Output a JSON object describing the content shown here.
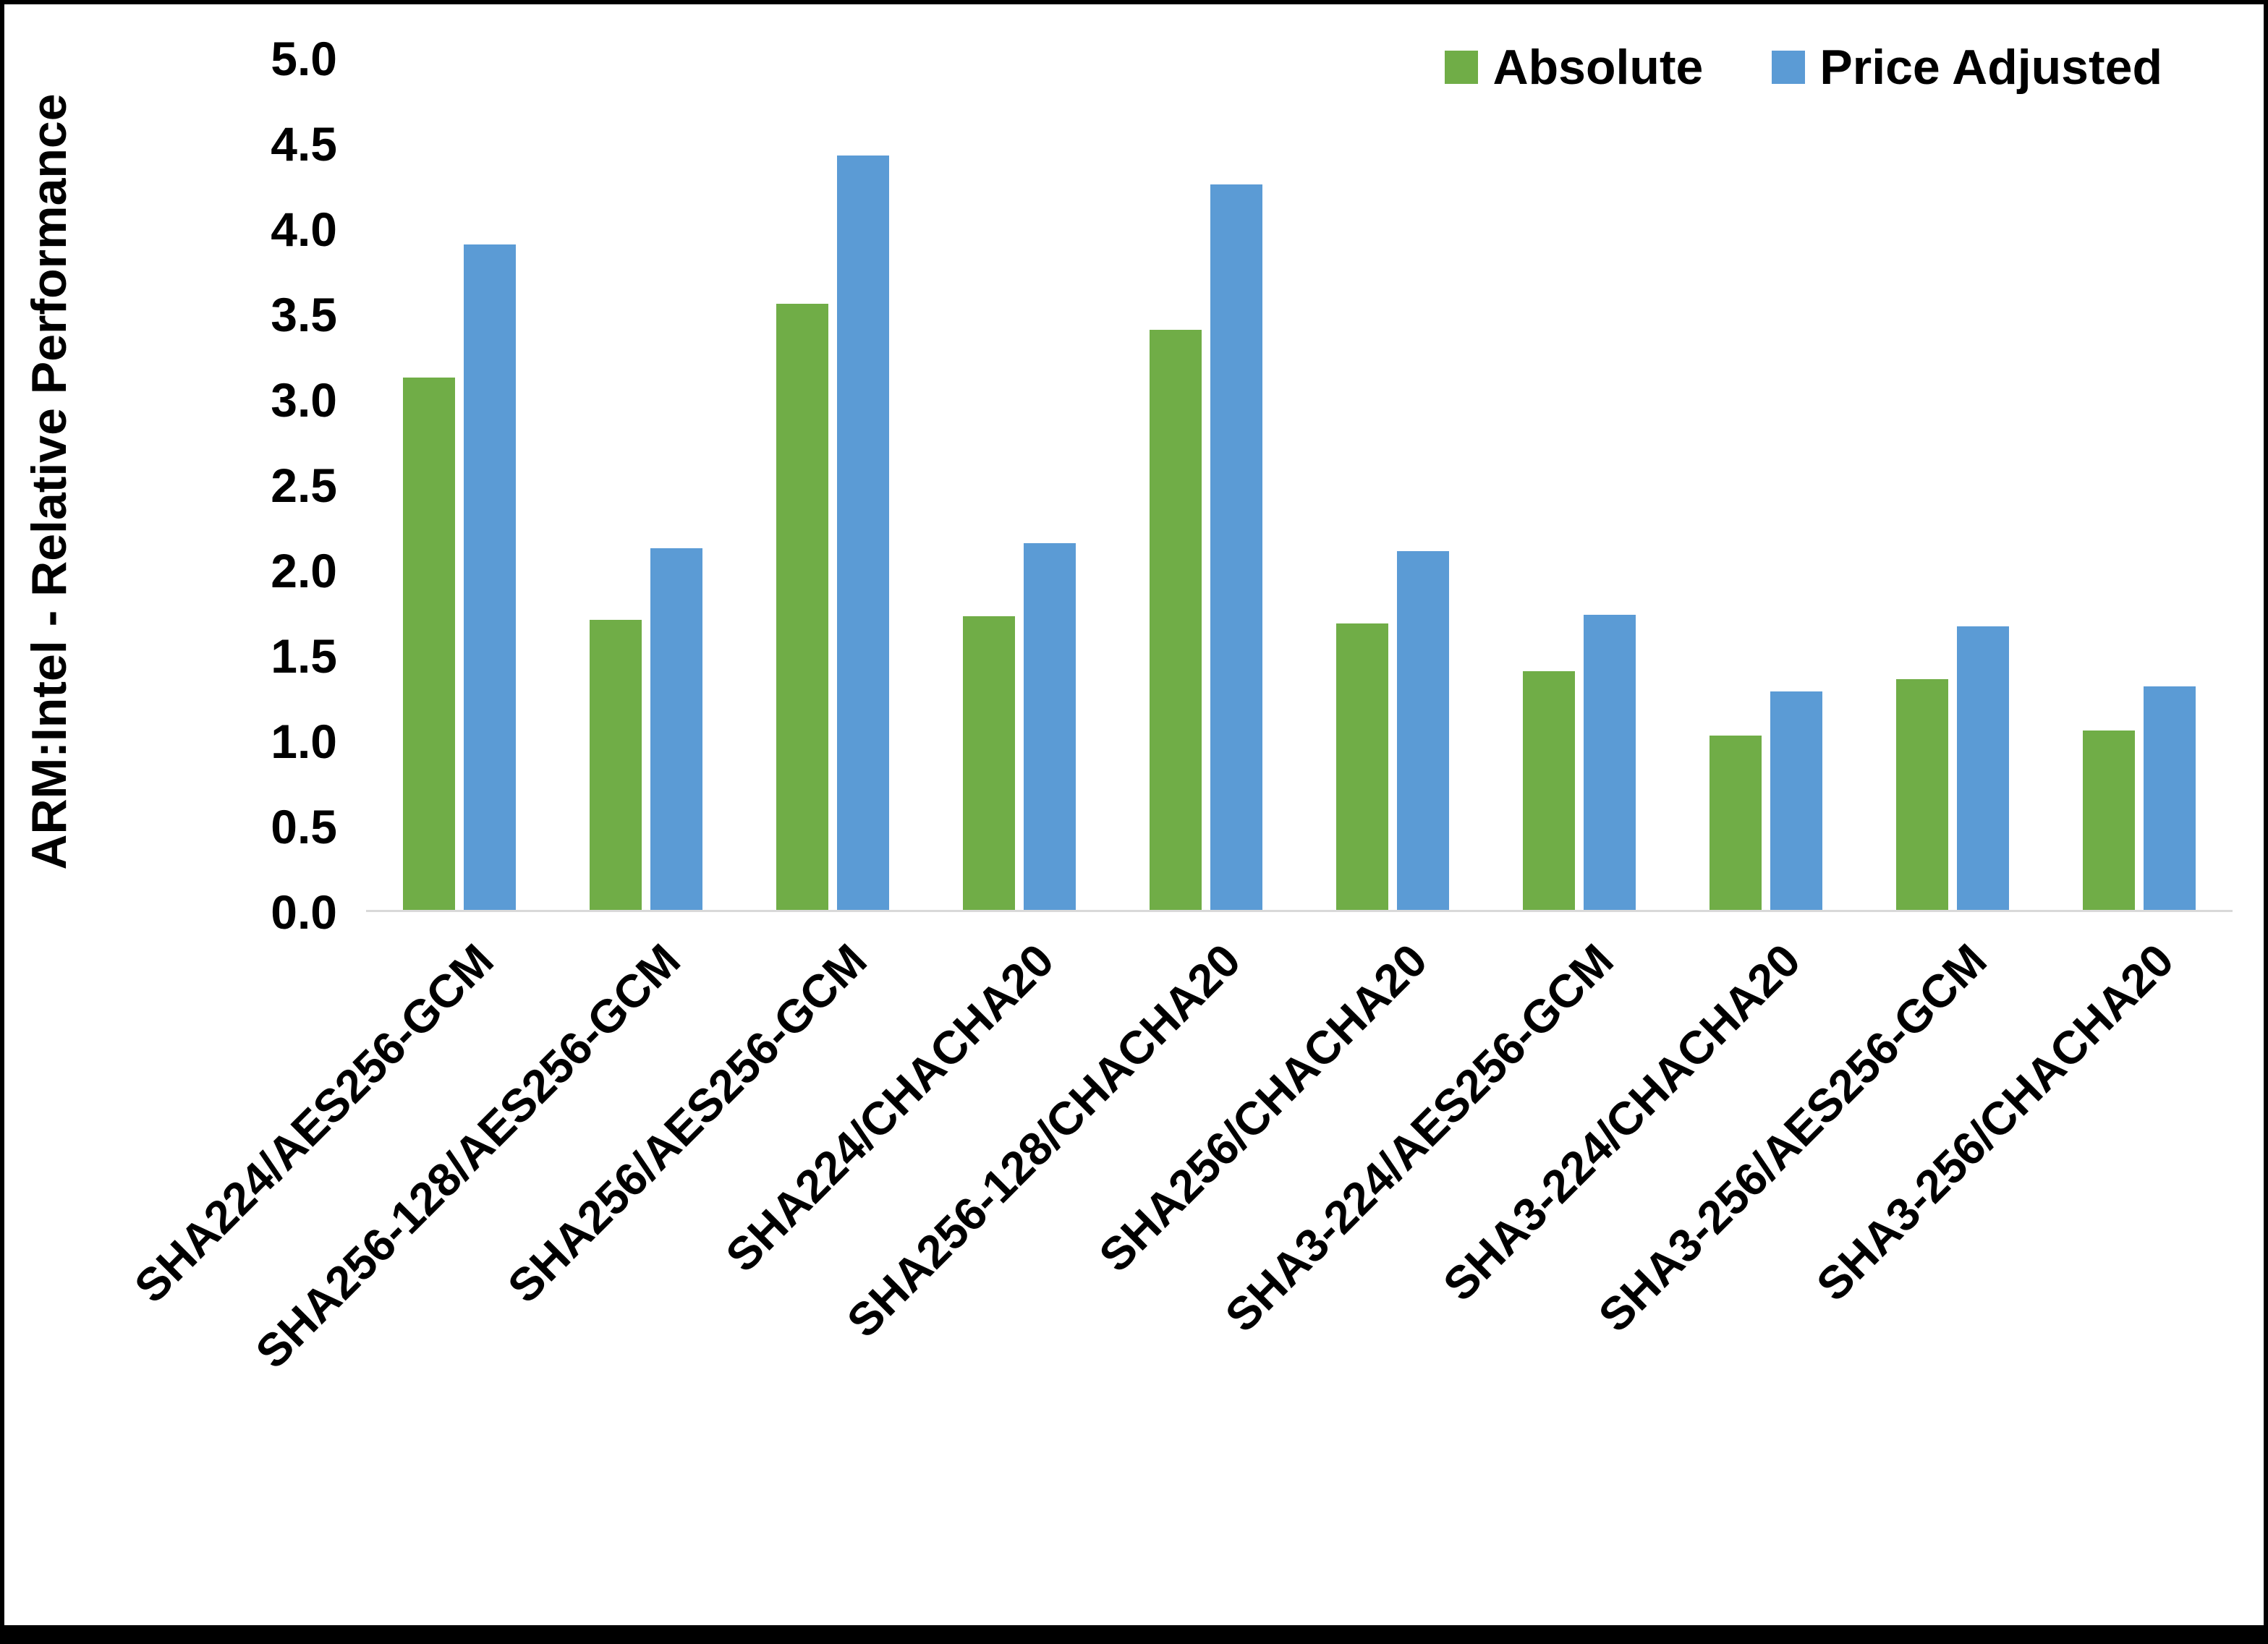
{
  "chart_data": {
    "type": "bar",
    "title": "",
    "xlabel": "",
    "ylabel": "ARM:Intel - Relative Performance",
    "ylim": [
      0,
      5
    ],
    "ytick_step": 0.5,
    "yticks": [
      "0.0",
      "0.5",
      "1.0",
      "1.5",
      "2.0",
      "2.5",
      "3.0",
      "3.5",
      "4.0",
      "4.5",
      "5.0"
    ],
    "grid": false,
    "legend_position": "top-right",
    "categories": [
      "SHA224/AES256-GCM",
      "SHA256-128/AES256-GCM",
      "SHA256/AES256-GCM",
      "SHA224/CHACHA20",
      "SHA256-128/CHACHA20",
      "SHA256/CHACHA20",
      "SHA3-224/AES256-GCM",
      "SHA3-224/CHACHA20",
      "SHA3-256/AES256-GCM",
      "SHA3-256/CHACHA20"
    ],
    "series": [
      {
        "name": "Absolute",
        "color": "#70AD47",
        "values": [
          3.12,
          1.7,
          3.55,
          1.72,
          3.4,
          1.68,
          1.4,
          1.02,
          1.35,
          1.05
        ]
      },
      {
        "name": "Price Adjusted",
        "color": "#5B9BD5",
        "values": [
          3.9,
          2.12,
          4.42,
          2.15,
          4.25,
          2.1,
          1.73,
          1.28,
          1.66,
          1.31
        ]
      }
    ]
  }
}
